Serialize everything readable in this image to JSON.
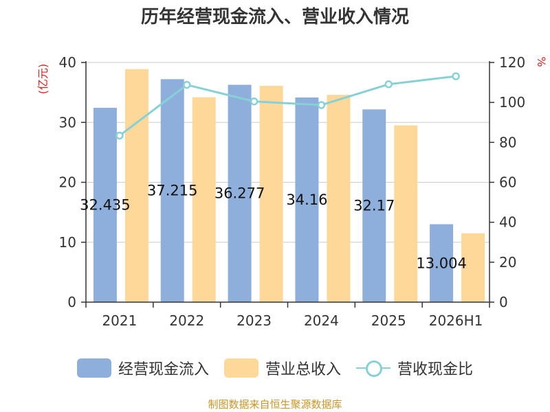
{
  "chart_data": {
    "type": "bar",
    "title": "历年经营现金流入、营业收入情况",
    "categories": [
      "2021",
      "2022",
      "2023",
      "2024",
      "2025",
      "2026H1"
    ],
    "y_left": {
      "unit": "(亿元)",
      "ylim": [
        0,
        40
      ],
      "ticks": [
        0,
        10,
        20,
        30,
        40
      ]
    },
    "y_right": {
      "unit": "%",
      "ylim": [
        0,
        120
      ],
      "ticks": [
        0,
        20,
        40,
        60,
        80,
        100,
        120
      ]
    },
    "series": [
      {
        "name": "经营现金流入",
        "type": "bar",
        "axis": "left",
        "color": "#8eaedb",
        "values": [
          32.435,
          37.215,
          36.277,
          34.16,
          32.17,
          13.004
        ],
        "data_labels": [
          "32.435",
          "37.215",
          "36.277",
          "34.16",
          "32.17",
          "13.004"
        ]
      },
      {
        "name": "营业总收入",
        "type": "bar",
        "axis": "left",
        "color": "#fed899",
        "values": [
          38.9,
          34.2,
          36.1,
          34.6,
          29.5,
          11.5
        ]
      },
      {
        "name": "营收现金比",
        "type": "line",
        "axis": "right",
        "color": "#86d1d4",
        "values": [
          83.4,
          108.8,
          100.5,
          98.7,
          109.1,
          113.1
        ]
      }
    ],
    "grid": true,
    "legend_position": "bottom"
  },
  "footer": {
    "source": "制图数据来自恒生聚源数据库"
  }
}
